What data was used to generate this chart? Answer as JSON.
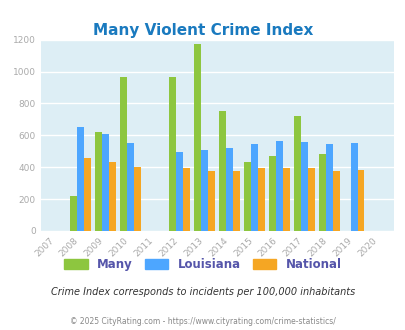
{
  "title": "Many Violent Crime Index",
  "years": [
    2007,
    2008,
    2009,
    2010,
    2011,
    2012,
    2013,
    2014,
    2015,
    2016,
    2017,
    2018,
    2019,
    2020
  ],
  "many": [
    null,
    220,
    620,
    965,
    null,
    965,
    1170,
    750,
    435,
    470,
    720,
    480,
    null,
    null
  ],
  "louisiana": [
    null,
    650,
    610,
    550,
    null,
    495,
    510,
    520,
    548,
    565,
    560,
    545,
    550,
    null
  ],
  "national": [
    null,
    455,
    430,
    400,
    null,
    392,
    378,
    378,
    392,
    398,
    398,
    378,
    380,
    null
  ],
  "colors": {
    "many": "#8dc63f",
    "louisiana": "#4da6ff",
    "national": "#f5a623"
  },
  "ylim": [
    0,
    1200
  ],
  "yticks": [
    0,
    200,
    400,
    600,
    800,
    1000,
    1200
  ],
  "bg_color": "#ddeef5",
  "subtitle": "Crime Index corresponds to incidents per 100,000 inhabitants",
  "copyright": "© 2025 CityRating.com - https://www.cityrating.com/crime-statistics/",
  "bar_width": 0.28,
  "title_color": "#1a7abf",
  "tick_color": "#aaaaaa",
  "legend_text_color": "#5555aa",
  "subtitle_color": "#333333",
  "copyright_color": "#888888"
}
